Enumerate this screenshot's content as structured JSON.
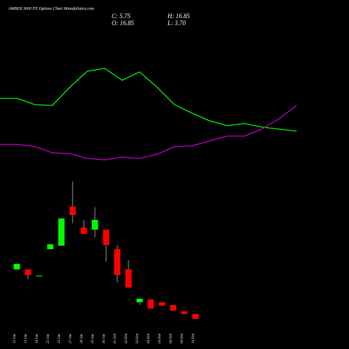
{
  "chart_data": [
    {
      "type": "candlestick",
      "title": "AMBER 3600  PE Options  Chart MunafaSutra.com",
      "annotations": [
        "C: 5.75",
        "H: 16.85",
        "O: 16.85",
        "L: 3.70"
      ],
      "categories": [
        "12 Jan",
        "13 Jan",
        "14 Jan",
        "22 Jan",
        "23 Jan",
        "27 Jan",
        "28 Jan",
        "29 Jan",
        "30 Jan",
        "01 Feb",
        "02 Feb",
        "03 Feb",
        "04 Feb",
        "05 Feb",
        "06 Feb",
        "09 Feb",
        "10 Feb"
      ],
      "open": [
        18.5,
        18.5,
        16.25,
        25.75,
        27,
        41,
        33.5,
        32.75,
        32.75,
        25.75,
        18.5,
        6.75,
        7.75,
        6.75,
        5.75,
        3.5,
        2.5
      ],
      "high": [
        20.5,
        18.5,
        16.25,
        27.5,
        36.75,
        50,
        36.25,
        40.75,
        32.75,
        27.25,
        21.75,
        8,
        7.75,
        6.75,
        5.75,
        3.5,
        2.5
      ],
      "low": [
        18.5,
        15,
        16.25,
        25.75,
        27,
        35,
        31.25,
        30,
        21.25,
        13.75,
        12,
        5.75,
        4.5,
        5.5,
        3.75,
        2.5,
        0.75
      ],
      "close": [
        20.5,
        16.5,
        16.25,
        27.5,
        36.75,
        38,
        31.25,
        36.25,
        27.25,
        16.5,
        12,
        8,
        4.5,
        5.5,
        3.75,
        2.5,
        0.75
      ],
      "up_color": "#00ff00",
      "down_color": "#ff0000",
      "ylim": [
        0,
        52.5
      ]
    },
    {
      "type": "line",
      "categories": [
        null,
        null,
        null,
        null,
        null,
        null,
        null,
        null,
        null,
        null,
        null,
        null,
        null,
        null,
        null,
        null,
        null,
        null
      ],
      "series": [
        {
          "color": "#00ff00",
          "values": [
            159,
            159,
            150,
            149,
            175,
            198,
            202,
            185,
            197,
            175,
            150,
            138,
            127,
            120,
            123,
            118,
            115,
            112
          ]
        },
        {
          "color": "#cc00cc",
          "values": [
            93,
            93,
            90,
            81,
            80,
            73,
            71,
            75,
            73,
            79,
            90,
            91,
            98,
            105,
            105,
            115,
            130,
            149
          ]
        }
      ],
      "ylim": [
        0,
        300
      ]
    }
  ]
}
